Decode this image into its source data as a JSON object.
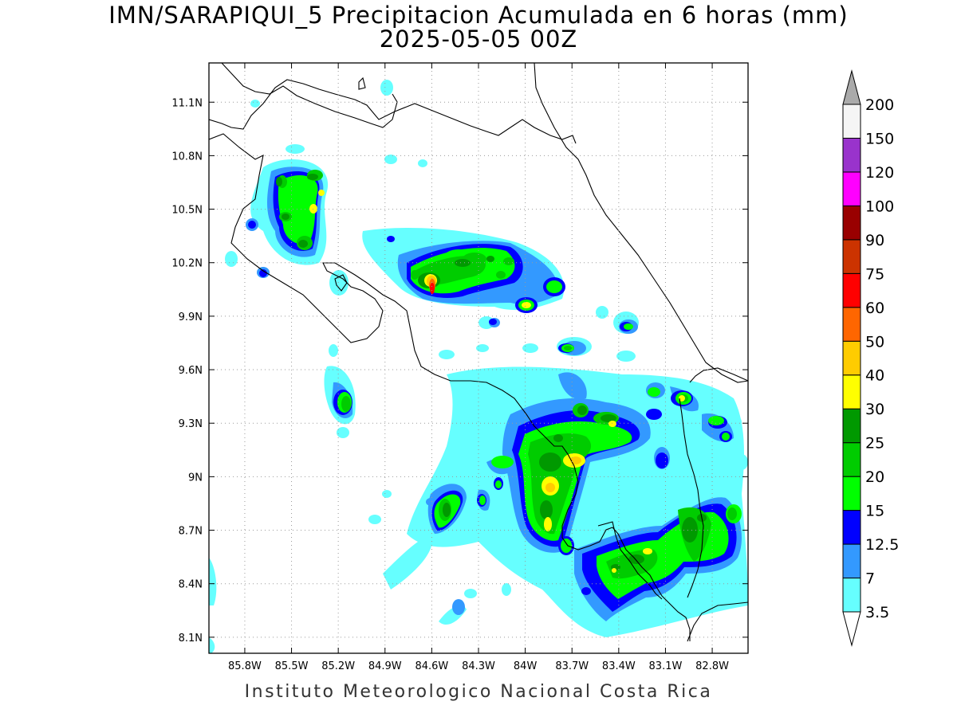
{
  "title": {
    "line1": "IMN/SARAPIQUI_5 Precipitacion Acumulada en 6 horas (mm)",
    "line2": "2025-05-05 00Z"
  },
  "footer": "Instituto Meteorologico Nacional Costa Rica",
  "map": {
    "lon_range": [
      -86.03,
      -82.57
    ],
    "lat_range": [
      8.01,
      11.32
    ],
    "x_ticks": [
      "85.8W",
      "85.5W",
      "85.2W",
      "84.9W",
      "84.6W",
      "84.3W",
      "84W",
      "83.7W",
      "83.4W",
      "83.1W",
      "82.8W"
    ],
    "x_tick_values": [
      -85.8,
      -85.5,
      -85.2,
      -84.9,
      -84.6,
      -84.3,
      -84.0,
      -83.7,
      -83.4,
      -83.1,
      -82.8
    ],
    "y_ticks": [
      "11.1N",
      "10.8N",
      "10.5N",
      "10.2N",
      "9.9N",
      "9.6N",
      "9.3N",
      "9N",
      "8.7N",
      "8.4N",
      "8.1N"
    ],
    "y_tick_values": [
      11.1,
      10.8,
      10.5,
      10.2,
      9.9,
      9.6,
      9.3,
      9.0,
      8.7,
      8.4,
      8.1
    ],
    "grid": "dotted"
  },
  "colorbar": {
    "levels": [
      "3.5",
      "7",
      "12.5",
      "15",
      "20",
      "25",
      "30",
      "40",
      "50",
      "60",
      "75",
      "90",
      "100",
      "120",
      "150",
      "200"
    ],
    "colors": [
      "#66ffff",
      "#3399ff",
      "#0000ff",
      "#00ff00",
      "#00cc00",
      "#009900",
      "#ffff00",
      "#ffcc00",
      "#ff6600",
      "#ff0000",
      "#cc3300",
      "#990000",
      "#ff00ff",
      "#9933cc",
      "#f5f5f5",
      "#aaaaaa"
    ],
    "under_color": "#ffffff",
    "over_color": "#aaaaaa"
  },
  "precip_cells": [
    {
      "lon": -85.55,
      "lat": 10.62,
      "mm": 30
    },
    {
      "lon": -85.37,
      "lat": 10.62,
      "mm": 30
    },
    {
      "lon": -85.4,
      "lat": 10.42,
      "mm": 40
    },
    {
      "lon": -85.5,
      "lat": 10.45,
      "mm": 20
    },
    {
      "lon": -85.4,
      "lat": 10.28,
      "mm": 20
    },
    {
      "lon": -85.7,
      "lat": 10.4,
      "mm": 12.5
    },
    {
      "lon": -85.6,
      "lat": 10.13,
      "mm": 12.5
    },
    {
      "lon": -84.6,
      "lat": 10.08,
      "mm": 60
    },
    {
      "lon": -84.6,
      "lat": 10.14,
      "mm": 40
    },
    {
      "lon": -84.33,
      "lat": 10.22,
      "mm": 25
    },
    {
      "lon": -84.1,
      "lat": 10.25,
      "mm": 20
    },
    {
      "lon": -84.2,
      "lat": 10.15,
      "mm": 30
    },
    {
      "lon": -83.75,
      "lat": 10.05,
      "mm": 25
    },
    {
      "lon": -83.93,
      "lat": 9.95,
      "mm": 30
    },
    {
      "lon": -83.6,
      "lat": 9.72,
      "mm": 25
    },
    {
      "lon": -83.25,
      "lat": 9.8,
      "mm": 20
    },
    {
      "lon": -85.15,
      "lat": 9.42,
      "mm": 20
    },
    {
      "lon": -83.55,
      "lat": 9.28,
      "mm": 30
    },
    {
      "lon": -83.75,
      "lat": 9.33,
      "mm": 25
    },
    {
      "lon": -83.62,
      "lat": 9.05,
      "mm": 40
    },
    {
      "lon": -83.78,
      "lat": 8.92,
      "mm": 40
    },
    {
      "lon": -83.75,
      "lat": 8.72,
      "mm": 40
    },
    {
      "lon": -84.45,
      "lat": 8.8,
      "mm": 25
    },
    {
      "lon": -84.1,
      "lat": 9.05,
      "mm": 20
    },
    {
      "lon": -83.35,
      "lat": 8.52,
      "mm": 30
    },
    {
      "lon": -82.9,
      "lat": 8.72,
      "mm": 30
    },
    {
      "lon": -82.75,
      "lat": 8.8,
      "mm": 25
    },
    {
      "lon": -82.85,
      "lat": 9.42,
      "mm": 40
    },
    {
      "lon": -82.65,
      "lat": 9.3,
      "mm": 20
    },
    {
      "lon": -83.05,
      "lat": 9.48,
      "mm": 20
    }
  ]
}
